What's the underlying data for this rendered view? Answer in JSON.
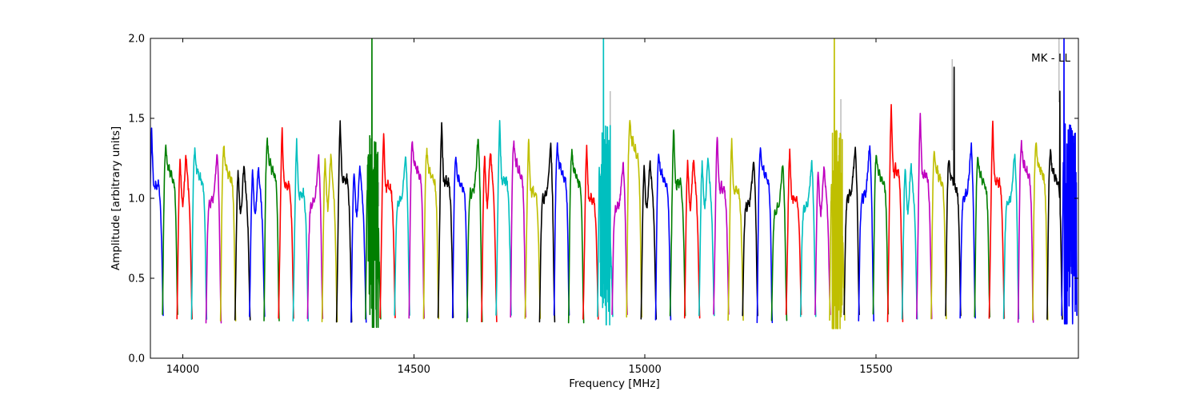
{
  "chart_data": {
    "type": "line",
    "title": "",
    "annotation": "MK - LL",
    "xlabel": "Frequency [MHz]",
    "ylabel": "Amplitude [arbitrary units]",
    "xlim": [
      13930,
      15938
    ],
    "ylim": [
      0.0,
      2.0
    ],
    "grid": false,
    "legend": "none",
    "x_ticks": [
      {
        "value": 14000,
        "label": "14000"
      },
      {
        "value": 14500,
        "label": "14500"
      },
      {
        "value": 15000,
        "label": "15000"
      },
      {
        "value": 15500,
        "label": "15500"
      }
    ],
    "y_ticks": [
      {
        "value": 0.0,
        "label": "0.0"
      },
      {
        "value": 0.5,
        "label": "0.5"
      },
      {
        "value": 1.0,
        "label": "1.0"
      },
      {
        "value": 1.5,
        "label": "1.5"
      },
      {
        "value": 2.0,
        "label": "2.0"
      }
    ],
    "colors": {
      "b": "#0000ff",
      "g": "#007f00",
      "r": "#ff0000",
      "c": "#00bfbf",
      "m": "#bf00bf",
      "y": "#bfbf00",
      "k": "#000000",
      "flagged": "#c0c0c0"
    },
    "baseline_amplitude": 0.25,
    "first_center_mhz": 13941.2,
    "segment_spacing_mhz": 31.38,
    "segment_width_mhz": 32.8,
    "clip_amplitude": 2.0,
    "profiles": {
      "A": [
        [
          0,
          0
        ],
        [
          0.03,
          0.18
        ],
        [
          0.07,
          0.52
        ],
        [
          0.12,
          0.8
        ],
        [
          0.17,
          0.95
        ],
        [
          0.22,
          1
        ],
        [
          0.28,
          0.93
        ],
        [
          0.35,
          0.87
        ],
        [
          0.42,
          0.89
        ],
        [
          0.5,
          0.83
        ],
        [
          0.58,
          0.85
        ],
        [
          0.66,
          0.8
        ],
        [
          0.74,
          0.81
        ],
        [
          0.81,
          0.75
        ],
        [
          0.87,
          0.62
        ],
        [
          0.92,
          0.4
        ],
        [
          0.96,
          0.14
        ],
        [
          1,
          0
        ]
      ],
      "B": [
        [
          0,
          0
        ],
        [
          0.04,
          0.22
        ],
        [
          0.09,
          0.55
        ],
        [
          0.14,
          0.82
        ],
        [
          0.2,
          0.97
        ],
        [
          0.25,
          0.88
        ],
        [
          0.31,
          0.74
        ],
        [
          0.38,
          0.68
        ],
        [
          0.45,
          0.76
        ],
        [
          0.52,
          0.9
        ],
        [
          0.59,
          1
        ],
        [
          0.66,
          0.9
        ],
        [
          0.73,
          0.82
        ],
        [
          0.8,
          0.72
        ],
        [
          0.86,
          0.58
        ],
        [
          0.91,
          0.38
        ],
        [
          0.96,
          0.13
        ],
        [
          1,
          0
        ]
      ],
      "C": [
        [
          0,
          0
        ],
        [
          0.04,
          0.2
        ],
        [
          0.09,
          0.48
        ],
        [
          0.15,
          0.63
        ],
        [
          0.22,
          0.72
        ],
        [
          0.29,
          0.68
        ],
        [
          0.37,
          0.74
        ],
        [
          0.45,
          0.71
        ],
        [
          0.53,
          0.78
        ],
        [
          0.61,
          0.85
        ],
        [
          0.68,
          0.95
        ],
        [
          0.74,
          1
        ],
        [
          0.8,
          0.88
        ],
        [
          0.86,
          0.7
        ],
        [
          0.91,
          0.45
        ],
        [
          0.95,
          0.18
        ],
        [
          1,
          0
        ]
      ],
      "D": [
        [
          0,
          0
        ],
        [
          0.04,
          0.15
        ],
        [
          0.09,
          0.4
        ],
        [
          0.14,
          0.66
        ],
        [
          0.19,
          0.88
        ],
        [
          0.24,
          1
        ],
        [
          0.3,
          0.84
        ],
        [
          0.36,
          0.72
        ],
        [
          0.44,
          0.68
        ],
        [
          0.52,
          0.72
        ],
        [
          0.6,
          0.68
        ],
        [
          0.68,
          0.71
        ],
        [
          0.76,
          0.66
        ],
        [
          0.83,
          0.58
        ],
        [
          0.88,
          0.46
        ],
        [
          0.93,
          0.28
        ],
        [
          0.97,
          0.1
        ],
        [
          1,
          0
        ]
      ]
    },
    "segments": [
      {
        "c": "b",
        "p": 1.43,
        "s": "D"
      },
      {
        "c": "g",
        "p": 1.32,
        "s": "A"
      },
      {
        "c": "r",
        "p": 1.27,
        "s": "B"
      },
      {
        "c": "c",
        "p": 1.3,
        "s": "A"
      },
      {
        "c": "m",
        "p": 1.28,
        "s": "C"
      },
      {
        "c": "y",
        "p": 1.33,
        "s": "A"
      },
      {
        "c": "k",
        "p": 1.21,
        "s": "B"
      },
      {
        "c": "b",
        "p": 1.2,
        "s": "B"
      },
      {
        "c": "g",
        "p": 1.36,
        "s": "A"
      },
      {
        "c": "r",
        "p": 1.44,
        "s": "D"
      },
      {
        "c": "c",
        "p": 1.37,
        "s": "D"
      },
      {
        "c": "m",
        "p": 1.26,
        "s": "C"
      },
      {
        "c": "y",
        "p": 1.27,
        "s": "B"
      },
      {
        "c": "k",
        "p": 1.5,
        "s": "D"
      },
      {
        "c": "b",
        "p": 1.2,
        "s": "B"
      },
      {
        "c": "g",
        "rfi": "clip",
        "st": 0.42
      },
      {
        "c": "r",
        "p": 1.42,
        "s": "D"
      },
      {
        "c": "c",
        "p": 1.27,
        "s": "C"
      },
      {
        "c": "m",
        "p": 1.35,
        "s": "A"
      },
      {
        "c": "y",
        "p": 1.3,
        "s": "A"
      },
      {
        "c": "k",
        "p": 1.47,
        "s": "D"
      },
      {
        "c": "b",
        "p": 1.25,
        "s": "A"
      },
      {
        "c": "g",
        "p": 1.37,
        "s": "C"
      },
      {
        "c": "r",
        "p": 1.3,
        "s": "B"
      },
      {
        "c": "c",
        "p": 1.48,
        "s": "D"
      },
      {
        "c": "m",
        "p": 1.35,
        "s": "A"
      },
      {
        "c": "y",
        "p": 1.38,
        "s": "D"
      },
      {
        "c": "k",
        "p": 1.33,
        "s": "C"
      },
      {
        "c": "b",
        "p": 1.33,
        "s": "A"
      },
      {
        "c": "g",
        "p": 1.3,
        "s": "A"
      },
      {
        "c": "r",
        "p": 1.32,
        "s": "D"
      },
      {
        "c": "c",
        "rfi": "clip",
        "st": 0.39
      },
      {
        "c": "m",
        "p": 1.22,
        "s": "C"
      },
      {
        "c": "y",
        "p": 1.5,
        "s": "A"
      },
      {
        "c": "k",
        "p": 1.24,
        "s": "B"
      },
      {
        "c": "b",
        "p": 1.28,
        "s": "A"
      },
      {
        "c": "g",
        "p": 1.45,
        "s": "D"
      },
      {
        "c": "r",
        "p": 1.25,
        "s": "B"
      },
      {
        "c": "c",
        "p": 1.25,
        "s": "B"
      },
      {
        "c": "m",
        "p": 1.4,
        "s": "D"
      },
      {
        "c": "y",
        "p": 1.39,
        "s": "D"
      },
      {
        "c": "k",
        "p": 1.24,
        "s": "C"
      },
      {
        "c": "b",
        "p": 1.32,
        "s": "A"
      },
      {
        "c": "g",
        "p": 1.21,
        "s": "C"
      },
      {
        "c": "r",
        "p": 1.31,
        "s": "D"
      },
      {
        "c": "c",
        "p": 1.22,
        "s": "C"
      },
      {
        "c": "m",
        "p": 1.2,
        "s": "B"
      },
      {
        "c": "y",
        "rfi": "clip",
        "st": 0.31
      },
      {
        "c": "k",
        "p": 1.32,
        "s": "C"
      },
      {
        "c": "b",
        "p": 1.33,
        "s": "C"
      },
      {
        "c": "g",
        "p": 1.28,
        "s": "A"
      },
      {
        "c": "r",
        "p": 1.58,
        "s": "D"
      },
      {
        "c": "c",
        "p": 1.22,
        "s": "B"
      },
      {
        "c": "m",
        "p": 1.53,
        "s": "D"
      },
      {
        "c": "y",
        "p": 1.3,
        "s": "A"
      },
      {
        "c": "k",
        "p": 1.25,
        "s": "A",
        "sp": {
          "h": 1.82,
          "t": 0.55
        }
      },
      {
        "c": "b",
        "p": 1.33,
        "s": "C"
      },
      {
        "c": "g",
        "p": 1.27,
        "s": "A"
      },
      {
        "c": "r",
        "p": 1.47,
        "s": "D"
      },
      {
        "c": "c",
        "p": 1.28,
        "s": "C"
      },
      {
        "c": "m",
        "p": 1.35,
        "s": "A"
      },
      {
        "c": "y",
        "p": 1.35,
        "s": "A"
      },
      {
        "c": "k",
        "p": 1.3,
        "s": "A",
        "sp": {
          "h": 1.67,
          "t": 0.84
        }
      },
      {
        "c": "b",
        "rfi": "clip",
        "st": 0.16,
        "wide": true
      }
    ],
    "flagged_lines": [
      {
        "x": 14424,
        "a0": 0.95,
        "a1": 1.1
      },
      {
        "x": 14925,
        "a0": 1.05,
        "a1": 1.67
      },
      {
        "x": 15424,
        "a0": 0.6,
        "a1": 1.62
      },
      {
        "x": 15665,
        "a0": 1.3,
        "a1": 1.87
      },
      {
        "x": 15896,
        "a0": 1.6,
        "a1": 2.0
      }
    ]
  }
}
